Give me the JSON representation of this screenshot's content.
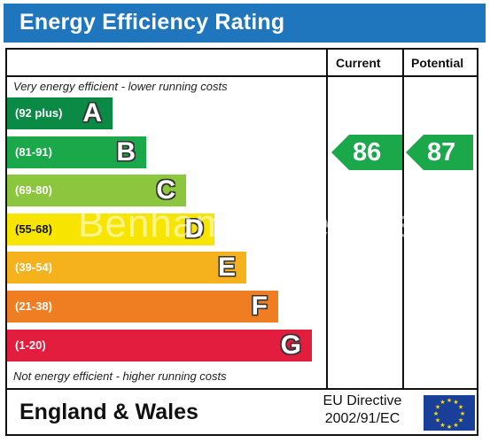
{
  "header": {
    "title": "Energy Efficiency Rating"
  },
  "columns": {
    "current": "Current",
    "potential": "Potential"
  },
  "notes": {
    "top": "Very energy efficient - lower running costs",
    "bottom": "Not energy efficient - higher running costs"
  },
  "chart_data": {
    "type": "bar",
    "title": "Energy Efficiency Rating",
    "categories": [
      "A",
      "B",
      "C",
      "D",
      "E",
      "F",
      "G"
    ],
    "ranges": [
      "(92 plus)",
      "(81-91)",
      "(69-80)",
      "(55-68)",
      "(39-54)",
      "(21-38)",
      "(1-20)"
    ],
    "colors": [
      "#0b8a45",
      "#1aa84a",
      "#8cc63f",
      "#f7e500",
      "#f5b21d",
      "#ef7d22",
      "#e31d3d"
    ],
    "current": {
      "label": "Current",
      "value": 86,
      "band": "B"
    },
    "potential": {
      "label": "Potential",
      "value": 87,
      "band": "B"
    }
  },
  "footer": {
    "region": "England & Wales",
    "directive_line1": "EU Directive",
    "directive_line2": "2002/91/EC"
  },
  "watermark": "Benham & Reeves",
  "colors": {
    "header": "#1f76bd",
    "arrow": "#1aa84a"
  }
}
